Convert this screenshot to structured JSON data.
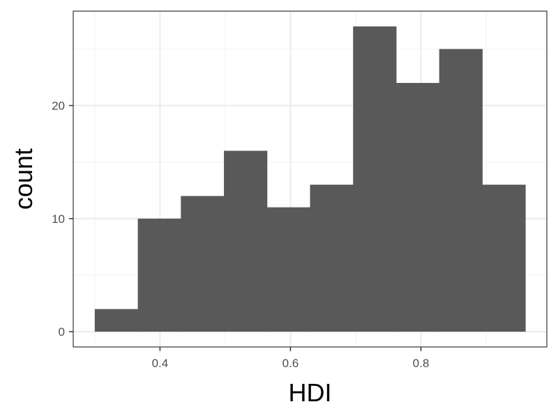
{
  "chart_data": {
    "type": "bar",
    "subtype": "histogram",
    "xlabel": "HDI",
    "ylabel": "count",
    "bins": [
      {
        "x0": 0.3,
        "x1": 0.366,
        "count": 2
      },
      {
        "x0": 0.366,
        "x1": 0.432,
        "count": 10
      },
      {
        "x0": 0.432,
        "x1": 0.498,
        "count": 12
      },
      {
        "x0": 0.498,
        "x1": 0.564,
        "count": 16
      },
      {
        "x0": 0.564,
        "x1": 0.63,
        "count": 11
      },
      {
        "x0": 0.63,
        "x1": 0.696,
        "count": 13
      },
      {
        "x0": 0.696,
        "x1": 0.762,
        "count": 27
      },
      {
        "x0": 0.762,
        "x1": 0.828,
        "count": 22
      },
      {
        "x0": 0.828,
        "x1": 0.894,
        "count": 25
      },
      {
        "x0": 0.894,
        "x1": 0.96,
        "count": 13
      }
    ],
    "xlim": [
      0.267,
      0.993
    ],
    "ylim": [
      -1.35,
      28.35
    ],
    "xticks": [
      0.4,
      0.6,
      0.8
    ],
    "xtick_labels": [
      "0.4",
      "0.6",
      "0.8"
    ],
    "yticks": [
      0,
      10,
      20
    ],
    "ytick_labels": [
      "0",
      "10",
      "20"
    ],
    "bar_color": "#595959",
    "grid": true
  }
}
